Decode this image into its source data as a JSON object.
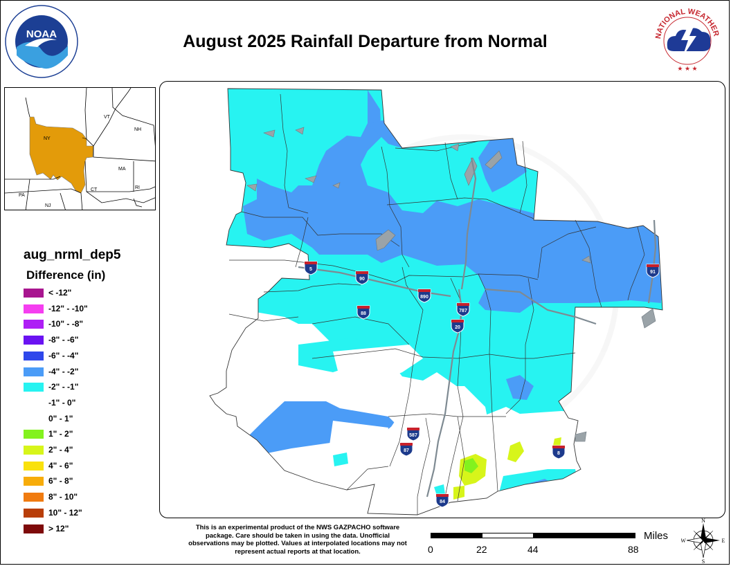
{
  "title": "August 2025 Rainfall Departure from Normal",
  "logos": {
    "left": {
      "name": "noaa-logo-icon",
      "text": "NOAA",
      "ring_text": "NATIONAL OCEANIC AND ATMOSPHERIC ADMINISTRATION · U.S. DEPARTMENT OF COMMERCE"
    },
    "right": {
      "name": "national-weather-service-logo-icon",
      "ring_text": "NATIONAL WEATHER SERVICE"
    }
  },
  "inset_map": {
    "labels": [
      "NY",
      "VT",
      "NH",
      "MA",
      "CT",
      "RI",
      "PA",
      "NJ"
    ],
    "highlight_color": "#E39B0A"
  },
  "legend": {
    "product": "aug_nrml_dep5",
    "heading": "Difference (in)",
    "items": [
      {
        "label": "< -12\"",
        "color": "#A8158F"
      },
      {
        "label": "-12\" - -10\"",
        "color": "#F53EF0"
      },
      {
        "label": "-10\" - -8\"",
        "color": "#AE1EF5"
      },
      {
        "label": "-8\" - -6\"",
        "color": "#6A12F2"
      },
      {
        "label": "-6\" - -4\"",
        "color": "#2E47EB"
      },
      {
        "label": "-4\" - -2\"",
        "color": "#4B9CF7"
      },
      {
        "label": "-2\" - -1\"",
        "color": "#27F3F1"
      },
      {
        "label": "-1\" - 0\"",
        "color": "#FFFFFF"
      },
      {
        "label": "0\" - 1\"",
        "color": "#FFFFFF"
      },
      {
        "label": "1\" - 2\"",
        "color": "#83F21E"
      },
      {
        "label": "2\" - 4\"",
        "color": "#D7F51A"
      },
      {
        "label": "4\" - 6\"",
        "color": "#F9E10C"
      },
      {
        "label": "6\" - 8\"",
        "color": "#F7AC0A"
      },
      {
        "label": "8\" - 10\"",
        "color": "#F07B10"
      },
      {
        "label": "10\" - 12\"",
        "color": "#B83E09"
      },
      {
        "label": "> 12\"",
        "color": "#7E0A0A"
      }
    ]
  },
  "map": {
    "watermark": "NATIONAL WEATHER SERVICE · U.S. DEPARTMENT OF COMMERCE",
    "interstates": [
      "5",
      "90",
      "890",
      "88",
      "787",
      "20",
      "91",
      "587",
      "87",
      "84",
      "8"
    ]
  },
  "disclaimer": "This is an experimental product of the NWS GAZPACHO software package. Care should be taken in using the data. Unofficial observations may be plotted. Values at interpolated locations may not represent actual reports at that location.",
  "scale": {
    "ticks": [
      "0",
      "22",
      "44",
      "88"
    ],
    "units": "Miles"
  },
  "compass": {
    "n": "N",
    "s": "S",
    "e": "E",
    "w": "W"
  }
}
